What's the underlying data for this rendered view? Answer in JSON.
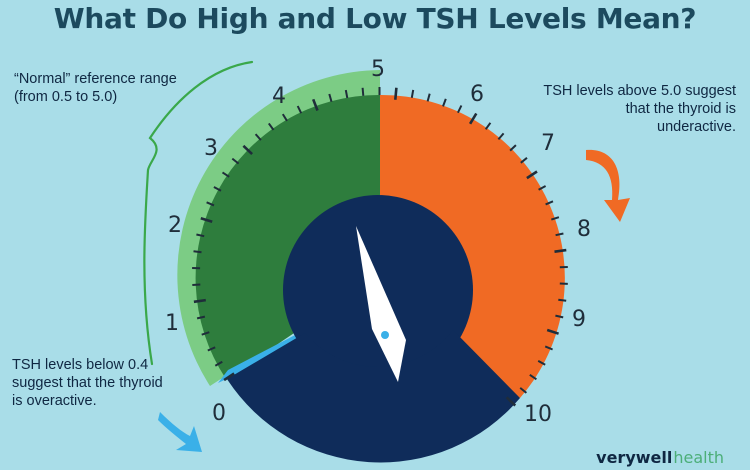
{
  "title": "What Do High and Low TSH Levels Mean?",
  "notes": {
    "normal_line1": "“Normal” reference range",
    "normal_line2": "(from 0.5 to 5.0)",
    "high_line1": "TSH levels above 5.0 suggest",
    "high_line2": "that the thyroid is",
    "high_line3": "underactive.",
    "low_line1": "TSH levels below 0.4",
    "low_line2": "suggest that the thyroid",
    "low_line3": "is overactive."
  },
  "scale": {
    "min": 0,
    "max": 10,
    "ticks": [
      "0",
      "1",
      "2",
      "3",
      "4",
      "5",
      "6",
      "7",
      "8",
      "9",
      "10"
    ],
    "low_zone": [
      0,
      0.4
    ],
    "normal_zone": [
      0.5,
      5.0
    ],
    "high_zone": [
      5.0,
      10
    ],
    "needle_value": 5.4
  },
  "colors": {
    "background": "#a9dde8",
    "normal_band": "#7ccc85",
    "normal_fill": "#2e7d3d",
    "high_fill": "#f06a24",
    "low_fill": "#3ab0e8",
    "center": "#0f2c5a",
    "needle": "#ffffff",
    "arrow_high": "#f06a24",
    "arrow_low": "#3ab0e8"
  },
  "brand": {
    "strong": "verywell",
    "light": "health"
  }
}
